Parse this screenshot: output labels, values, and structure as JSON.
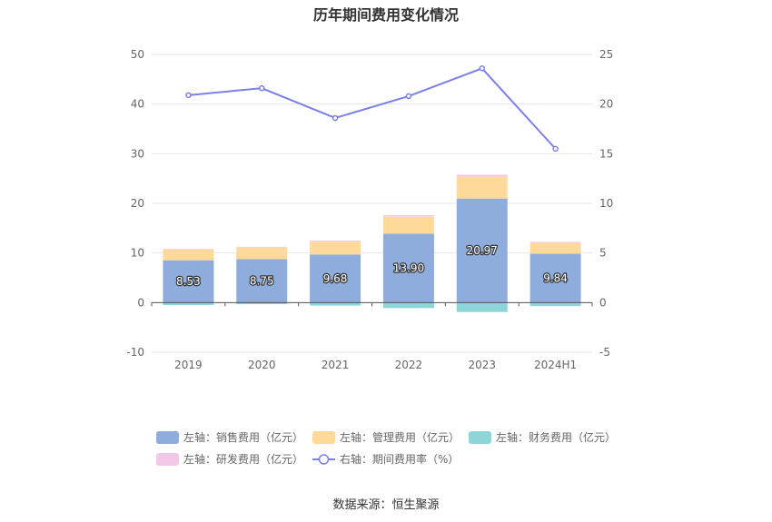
{
  "chart_data": {
    "type": "bar",
    "title": "历年期间费用变化情况",
    "source": "数据来源：恒生聚源",
    "categories": [
      "2019",
      "2020",
      "2021",
      "2022",
      "2023",
      "2024H1"
    ],
    "left_axis": {
      "ylim": [
        -10,
        50
      ],
      "ticks": [
        "-10",
        "0",
        "10",
        "20",
        "30",
        "40",
        "50"
      ]
    },
    "right_axis": {
      "ylim": [
        -5,
        25
      ],
      "ticks": [
        "-5",
        "0",
        "5",
        "10",
        "15",
        "20",
        "25"
      ]
    },
    "grid": true,
    "legend_position": "bottom",
    "series": [
      {
        "name": "左轴：销售费用（亿元）",
        "type": "bar",
        "axis": "left",
        "color": "#8eacdc",
        "values": [
          8.53,
          8.75,
          9.68,
          13.9,
          20.97,
          9.84
        ],
        "labels": [
          "8.53",
          "8.75",
          "9.68",
          "13.90",
          "20.97",
          "9.84"
        ]
      },
      {
        "name": "左轴：管理费用（亿元）",
        "type": "bar",
        "axis": "left",
        "color": "#ffd99a",
        "values": [
          2.2,
          2.4,
          2.6,
          3.4,
          4.4,
          2.2
        ]
      },
      {
        "name": "左轴：财务费用（亿元）",
        "type": "bar",
        "axis": "left",
        "color": "#8ed5d8",
        "values": [
          -0.5,
          -0.3,
          -0.6,
          -1.1,
          -1.9,
          -0.7
        ]
      },
      {
        "name": "左轴：研发费用（亿元）",
        "type": "bar",
        "axis": "left",
        "color": "#f2c8e6",
        "values": [
          0.1,
          0.1,
          0.2,
          0.3,
          0.4,
          0.2
        ]
      },
      {
        "name": "右轴：期间费用率（%）",
        "type": "line",
        "axis": "right",
        "color": "#7b7fe8",
        "values": [
          20.9,
          21.6,
          18.6,
          20.8,
          23.6,
          15.5
        ]
      }
    ]
  }
}
